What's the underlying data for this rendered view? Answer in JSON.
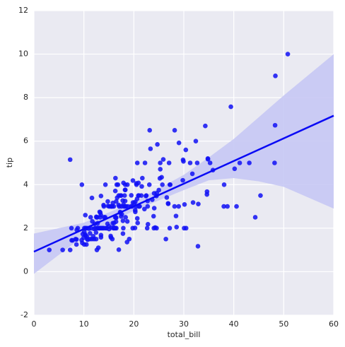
{
  "chart_data": {
    "type": "scatter",
    "xlabel": "total_bill",
    "ylabel": "tip",
    "xlim": [
      0,
      60
    ],
    "ylim": [
      -2,
      12
    ],
    "xticks": [
      0,
      10,
      20,
      30,
      40,
      50,
      60
    ],
    "yticks": [
      -2,
      0,
      2,
      4,
      6,
      8,
      10,
      12
    ],
    "grid": true,
    "color": "#1010f5",
    "x": [
      16.99,
      10.34,
      21.01,
      23.68,
      24.59,
      25.29,
      8.77,
      26.88,
      15.04,
      14.78,
      10.27,
      35.26,
      15.42,
      18.43,
      14.83,
      21.58,
      10.33,
      16.29,
      16.97,
      20.65,
      17.92,
      20.29,
      15.77,
      39.42,
      19.82,
      17.81,
      13.37,
      12.69,
      21.7,
      19.65,
      9.55,
      18.35,
      15.06,
      20.69,
      17.78,
      24.06,
      16.31,
      16.93,
      18.69,
      31.27,
      16.04,
      17.46,
      13.94,
      9.68,
      30.4,
      18.29,
      22.23,
      32.4,
      28.55,
      18.04,
      12.54,
      10.29,
      34.81,
      9.94,
      25.56,
      19.49,
      38.01,
      26.41,
      11.24,
      48.27,
      20.29,
      13.81,
      11.02,
      18.29,
      17.59,
      20.08,
      16.45,
      3.07,
      20.23,
      15.01,
      12.02,
      17.07,
      26.86,
      25.28,
      14.73,
      10.51,
      17.92,
      27.2,
      22.76,
      17.29,
      19.44,
      16.66,
      10.07,
      32.68,
      15.98,
      34.83,
      13.03,
      18.28,
      24.71,
      21.16,
      28.97,
      22.49,
      5.75,
      16.32,
      22.75,
      40.17,
      27.28,
      12.03,
      21.01,
      12.46,
      11.35,
      15.38,
      44.3,
      22.42,
      20.92,
      15.36,
      20.49,
      25.21,
      18.24,
      14.31,
      14.0,
      7.25,
      38.07,
      23.95,
      25.71,
      17.31,
      29.93,
      10.65,
      12.43,
      24.08,
      11.69,
      13.42,
      14.26,
      15.95,
      12.48,
      29.8,
      8.52,
      14.52,
      11.38,
      22.82,
      19.08,
      20.27,
      11.17,
      12.26,
      18.26,
      8.51,
      10.33,
      14.15,
      16.0,
      13.16,
      17.47,
      34.3,
      41.19,
      27.05,
      16.43,
      8.35,
      18.64,
      11.87,
      9.78,
      7.51,
      14.07,
      13.13,
      17.26,
      24.55,
      19.77,
      29.85,
      48.17,
      25.0,
      13.39,
      16.49,
      21.5,
      12.66,
      16.21,
      13.81,
      17.51,
      24.52,
      20.76,
      31.71,
      10.59,
      10.63,
      50.81,
      15.81,
      7.25,
      31.85,
      16.82,
      32.9,
      17.89,
      14.48,
      9.6,
      34.63,
      34.65,
      23.33,
      45.35,
      23.17,
      40.55,
      20.69,
      20.9,
      30.46,
      18.15,
      23.1,
      15.69,
      19.81,
      28.44,
      15.48,
      16.58,
      7.56,
      10.34,
      43.11,
      13.0,
      13.51,
      18.71,
      12.74,
      13.0,
      16.4,
      20.53,
      16.47,
      26.59,
      38.73,
      24.27,
      12.76,
      30.06,
      25.89,
      48.33,
      13.27,
      28.17,
      12.9,
      28.15,
      11.59,
      7.74,
      30.14,
      12.16,
      13.42,
      8.58,
      15.98,
      13.42,
      16.27,
      10.09,
      20.45,
      13.28,
      22.12,
      24.01,
      15.69,
      11.61,
      10.77,
      15.53,
      10.07,
      12.6,
      32.83,
      35.83,
      29.03,
      27.18,
      22.67,
      17.82,
      18.78
    ],
    "y": [
      1.01,
      1.66,
      3.5,
      3.31,
      3.61,
      4.71,
      2.0,
      3.12,
      1.96,
      3.23,
      1.71,
      5.0,
      1.57,
      3.0,
      3.02,
      3.92,
      1.67,
      3.71,
      3.5,
      3.35,
      4.08,
      2.75,
      2.23,
      7.58,
      3.18,
      2.34,
      2.0,
      2.0,
      4.3,
      3.0,
      1.45,
      2.5,
      3.0,
      2.45,
      3.27,
      3.6,
      2.0,
      3.07,
      2.31,
      5.0,
      2.24,
      2.54,
      3.06,
      1.32,
      5.6,
      3.0,
      5.0,
      6.0,
      2.05,
      3.0,
      2.5,
      2.6,
      5.2,
      1.56,
      4.34,
      3.51,
      3.0,
      1.5,
      1.76,
      6.73,
      3.21,
      2.0,
      1.98,
      3.76,
      2.64,
      3.15,
      2.47,
      1.0,
      2.01,
      2.09,
      1.97,
      3.0,
      3.14,
      5.0,
      2.2,
      1.25,
      3.08,
      4.0,
      3.0,
      2.71,
      3.0,
      3.4,
      1.83,
      5.0,
      2.03,
      5.17,
      2.0,
      4.0,
      5.85,
      3.0,
      3.0,
      3.5,
      1.0,
      4.3,
      3.25,
      4.73,
      4.0,
      1.5,
      3.0,
      1.5,
      2.5,
      3.0,
      2.5,
      3.48,
      4.08,
      1.64,
      4.06,
      4.29,
      3.76,
      4.0,
      3.0,
      1.0,
      4.0,
      2.55,
      4.0,
      3.5,
      5.07,
      1.5,
      1.8,
      2.92,
      2.31,
      1.68,
      2.5,
      2.0,
      2.52,
      4.2,
      1.48,
      2.0,
      2.0,
      2.18,
      1.5,
      2.83,
      1.5,
      2.0,
      3.25,
      1.25,
      2.0,
      2.0,
      2.0,
      2.75,
      3.5,
      6.7,
      5.0,
      5.0,
      2.3,
      1.5,
      1.36,
      1.63,
      1.73,
      2.0,
      2.5,
      2.0,
      2.74,
      2.0,
      2.0,
      5.14,
      5.0,
      3.75,
      2.61,
      2.0,
      3.5,
      2.5,
      2.0,
      2.0,
      3.0,
      3.48,
      2.24,
      4.5,
      1.61,
      2.0,
      10.0,
      3.16,
      5.15,
      3.18,
      4.0,
      3.11,
      2.0,
      2.0,
      4.0,
      3.55,
      3.68,
      5.65,
      3.5,
      6.5,
      3.0,
      5.0,
      3.5,
      2.0,
      3.5,
      4.0,
      1.5,
      4.19,
      2.56,
      2.02,
      4.0,
      1.44,
      2.0,
      5.0,
      2.0,
      2.0,
      4.0,
      2.01,
      2.0,
      2.5,
      4.0,
      3.23,
      3.41,
      3.0,
      2.03,
      2.23,
      2.0,
      5.16,
      9.0,
      2.5,
      6.5,
      1.1,
      3.0,
      1.5,
      1.44,
      3.09,
      2.2,
      3.48,
      1.92,
      3.0,
      1.58,
      2.5,
      2.0,
      3.0,
      2.72,
      2.88,
      2.0,
      3.0,
      3.39,
      1.47,
      3.0,
      1.25,
      1.0,
      1.17,
      4.67,
      5.92,
      2.0,
      2.0,
      1.75,
      3.0
    ],
    "fit": {
      "color": "#0a0af5",
      "x": [
        0,
        60
      ],
      "y": [
        0.92,
        7.17
      ]
    },
    "ci_band": {
      "color": "#c6c8f4",
      "x": [
        0,
        10,
        20,
        30,
        35,
        40,
        45,
        50,
        60
      ],
      "upper": [
        1.75,
        2.25,
        3.2,
        4.45,
        5.25,
        6.1,
        7.1,
        8.1,
        10.0
      ],
      "lower": [
        -0.1,
        1.65,
        2.8,
        3.75,
        4.2,
        4.3,
        4.15,
        3.9,
        2.9
      ]
    }
  }
}
